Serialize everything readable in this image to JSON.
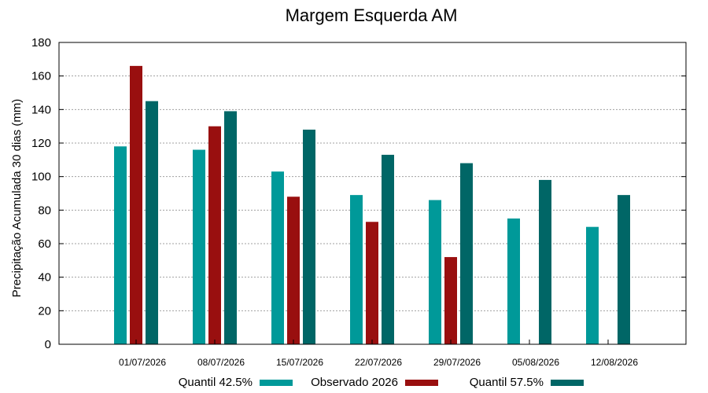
{
  "chart_data": {
    "type": "bar",
    "title": "Margem Esquerda AM",
    "xlabel": "",
    "ylabel": "Precipitação Acumulada 30 dias (mm)",
    "ylim": [
      0,
      180
    ],
    "yticks": [
      0,
      20,
      40,
      60,
      80,
      100,
      120,
      140,
      160,
      180
    ],
    "categories": [
      "01/07/2026",
      "08/07/2026",
      "15/07/2026",
      "22/07/2026",
      "29/07/2026",
      "05/08/2026",
      "12/08/2026"
    ],
    "series": [
      {
        "name": "Quantil 42.5%",
        "color": "#009999",
        "values": [
          118,
          116,
          103,
          89,
          86,
          75,
          70
        ]
      },
      {
        "name": "Observado 2026",
        "color": "#990f0f",
        "values": [
          166,
          130,
          88,
          73,
          52,
          null,
          null
        ]
      },
      {
        "name": "Quantil 57.5%",
        "color": "#006666",
        "values": [
          145,
          139,
          128,
          113,
          108,
          98,
          89
        ]
      }
    ],
    "grid": true,
    "legend_position": "bottom"
  }
}
